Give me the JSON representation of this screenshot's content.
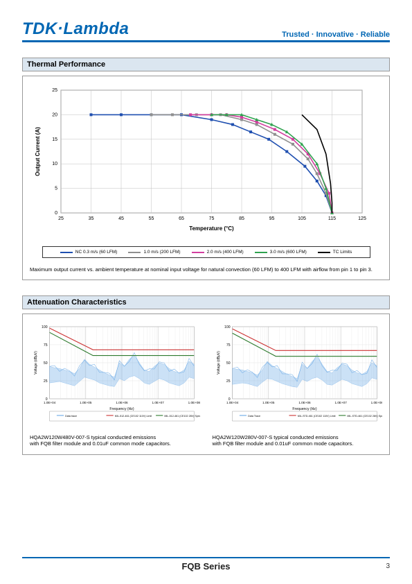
{
  "header": {
    "logo": "TDK·Lambda",
    "tagline": "Trusted · Innovative · Reliable"
  },
  "thermal": {
    "title": "Thermal Performance",
    "chart": {
      "type": "line",
      "xlabel": "Temperature (°C)",
      "ylabel": "Output Current (A)",
      "xlim": [
        25,
        125
      ],
      "ylim": [
        0,
        25
      ],
      "xtick_step": 10,
      "ytick_step": 5,
      "label_fontsize": 8,
      "tick_fontsize": 7,
      "background_color": "#ffffff",
      "grid_color": "#bfbfbf",
      "axis_color": "#666666",
      "series": [
        {
          "name": "NC 0.3 m/s (60 LFM)",
          "color": "#1f4fb0",
          "marker": "square",
          "x": [
            35,
            45,
            55,
            65,
            75,
            82,
            88,
            94,
            100,
            106,
            110,
            113,
            115
          ],
          "y": [
            20,
            20,
            20,
            20,
            19,
            18,
            16.5,
            15,
            12.5,
            9.5,
            6.5,
            3.5,
            0
          ]
        },
        {
          "name": "1.0 m/s (200 LFM)",
          "color": "#8f8f8f",
          "marker": "square",
          "x": [
            55,
            62,
            70,
            78,
            85,
            90,
            96,
            102,
            107,
            110,
            113,
            115
          ],
          "y": [
            20,
            20,
            20,
            20,
            19,
            18,
            16,
            14,
            11,
            8,
            4,
            0
          ]
        },
        {
          "name": "2.0 m/s (400 LFM)",
          "color": "#d23f9f",
          "marker": "square",
          "x": [
            68,
            75,
            80,
            85,
            90,
            96,
            102,
            107,
            111,
            114,
            115
          ],
          "y": [
            20,
            20,
            20,
            19.5,
            18.5,
            17,
            15,
            12,
            8,
            4,
            0
          ]
        },
        {
          "name": "3.0 m/s (600 LFM)",
          "color": "#2fa24f",
          "marker": "triangle",
          "x": [
            75,
            80,
            85,
            90,
            95,
            100,
            105,
            110,
            113,
            115
          ],
          "y": [
            20,
            20,
            20,
            19,
            18,
            16.5,
            14,
            10,
            5,
            0
          ]
        },
        {
          "name": "TC Limits",
          "color": "#000000",
          "marker": "none",
          "x": [
            105,
            110,
            113,
            114.5,
            115,
            115
          ],
          "y": [
            20,
            17,
            12,
            6,
            2,
            0
          ]
        }
      ]
    },
    "caption": "Maximum output current vs. ambient temperature at nominal input voltage for natural convection (60 LFM) to 400 LFM with airflow from pin 1 to pin 3."
  },
  "attenuation": {
    "title": "Attenuation Characteristics",
    "left": {
      "xlabel": "Frequency (Hz)",
      "ylabel": "Voltage (dBμV)",
      "xlim_decades": [
        4,
        8
      ],
      "ylim": [
        0,
        100
      ],
      "ytick_step": 25,
      "grid_color": "#e0e0e0",
      "limit_lines": [
        {
          "label": "MIL-512-461 (CE102 110V) Limit",
          "color": "#cc3333",
          "pts": [
            [
              4,
              98
            ],
            [
              5.2,
              68
            ],
            [
              8,
              68
            ]
          ]
        },
        {
          "label": "MIL-512-461 (CE102 28V) Spec Limit",
          "color": "#2d7a2d",
          "pts": [
            [
              4,
              92
            ],
            [
              5.2,
              60
            ],
            [
              8,
              60
            ]
          ]
        }
      ],
      "trace": {
        "label": "Data trace",
        "color": "#6aa9e6",
        "env_top": [
          45,
          43,
          42,
          40,
          38,
          35,
          42,
          55,
          48,
          44,
          40,
          36,
          33,
          30,
          50,
          45,
          55,
          60,
          50,
          40,
          38,
          45,
          50,
          48,
          42,
          38,
          36,
          40,
          52,
          48
        ],
        "env_bottom": [
          22,
          23,
          24,
          22,
          20,
          18,
          24,
          30,
          28,
          26,
          22,
          20,
          18,
          17,
          28,
          25,
          30,
          32,
          28,
          22,
          20,
          24,
          28,
          26,
          22,
          20,
          18,
          22,
          30,
          28
        ]
      },
      "caption_l1": "HQA2W120W480V-007-S typical conducted emissions",
      "caption_l2": "with FQB filter module and 0.01uF common mode capacitors."
    },
    "right": {
      "xlabel": "Frequency (Hz)",
      "ylabel": "Voltage (dBμV)",
      "xlim_decades": [
        4,
        8
      ],
      "ylim": [
        0,
        100
      ],
      "ytick_step": 25,
      "grid_color": "#e0e0e0",
      "limit_lines": [
        {
          "label": "MIL-STD-461 (CE102 110V) Limit",
          "color": "#cc3333",
          "pts": [
            [
              4,
              97
            ],
            [
              5.2,
              67
            ],
            [
              8,
              67
            ]
          ]
        },
        {
          "label": "MIL-STD-461 (CE102 28V) Spec Limit",
          "color": "#2d7a2d",
          "pts": [
            [
              4,
              91
            ],
            [
              5.2,
              59
            ],
            [
              8,
              59
            ]
          ]
        }
      ],
      "trace": {
        "label": "Data Trace",
        "color": "#6aa9e6",
        "env_top": [
          42,
          41,
          40,
          38,
          36,
          33,
          40,
          52,
          46,
          42,
          38,
          34,
          31,
          28,
          48,
          42,
          52,
          58,
          48,
          38,
          36,
          43,
          48,
          46,
          40,
          36,
          34,
          38,
          50,
          46
        ],
        "env_bottom": [
          20,
          21,
          22,
          21,
          19,
          17,
          23,
          28,
          27,
          24,
          21,
          19,
          17,
          16,
          27,
          24,
          28,
          30,
          26,
          20,
          19,
          23,
          27,
          25,
          21,
          19,
          17,
          21,
          29,
          27
        ]
      },
      "caption_l1": "HQA2W120W280V-007-S typical conducted emissions",
      "caption_l2": "with FQB filter module and 0.01uF common mode capacitors."
    }
  },
  "footer": {
    "series": "FQB Series",
    "page": "3"
  }
}
